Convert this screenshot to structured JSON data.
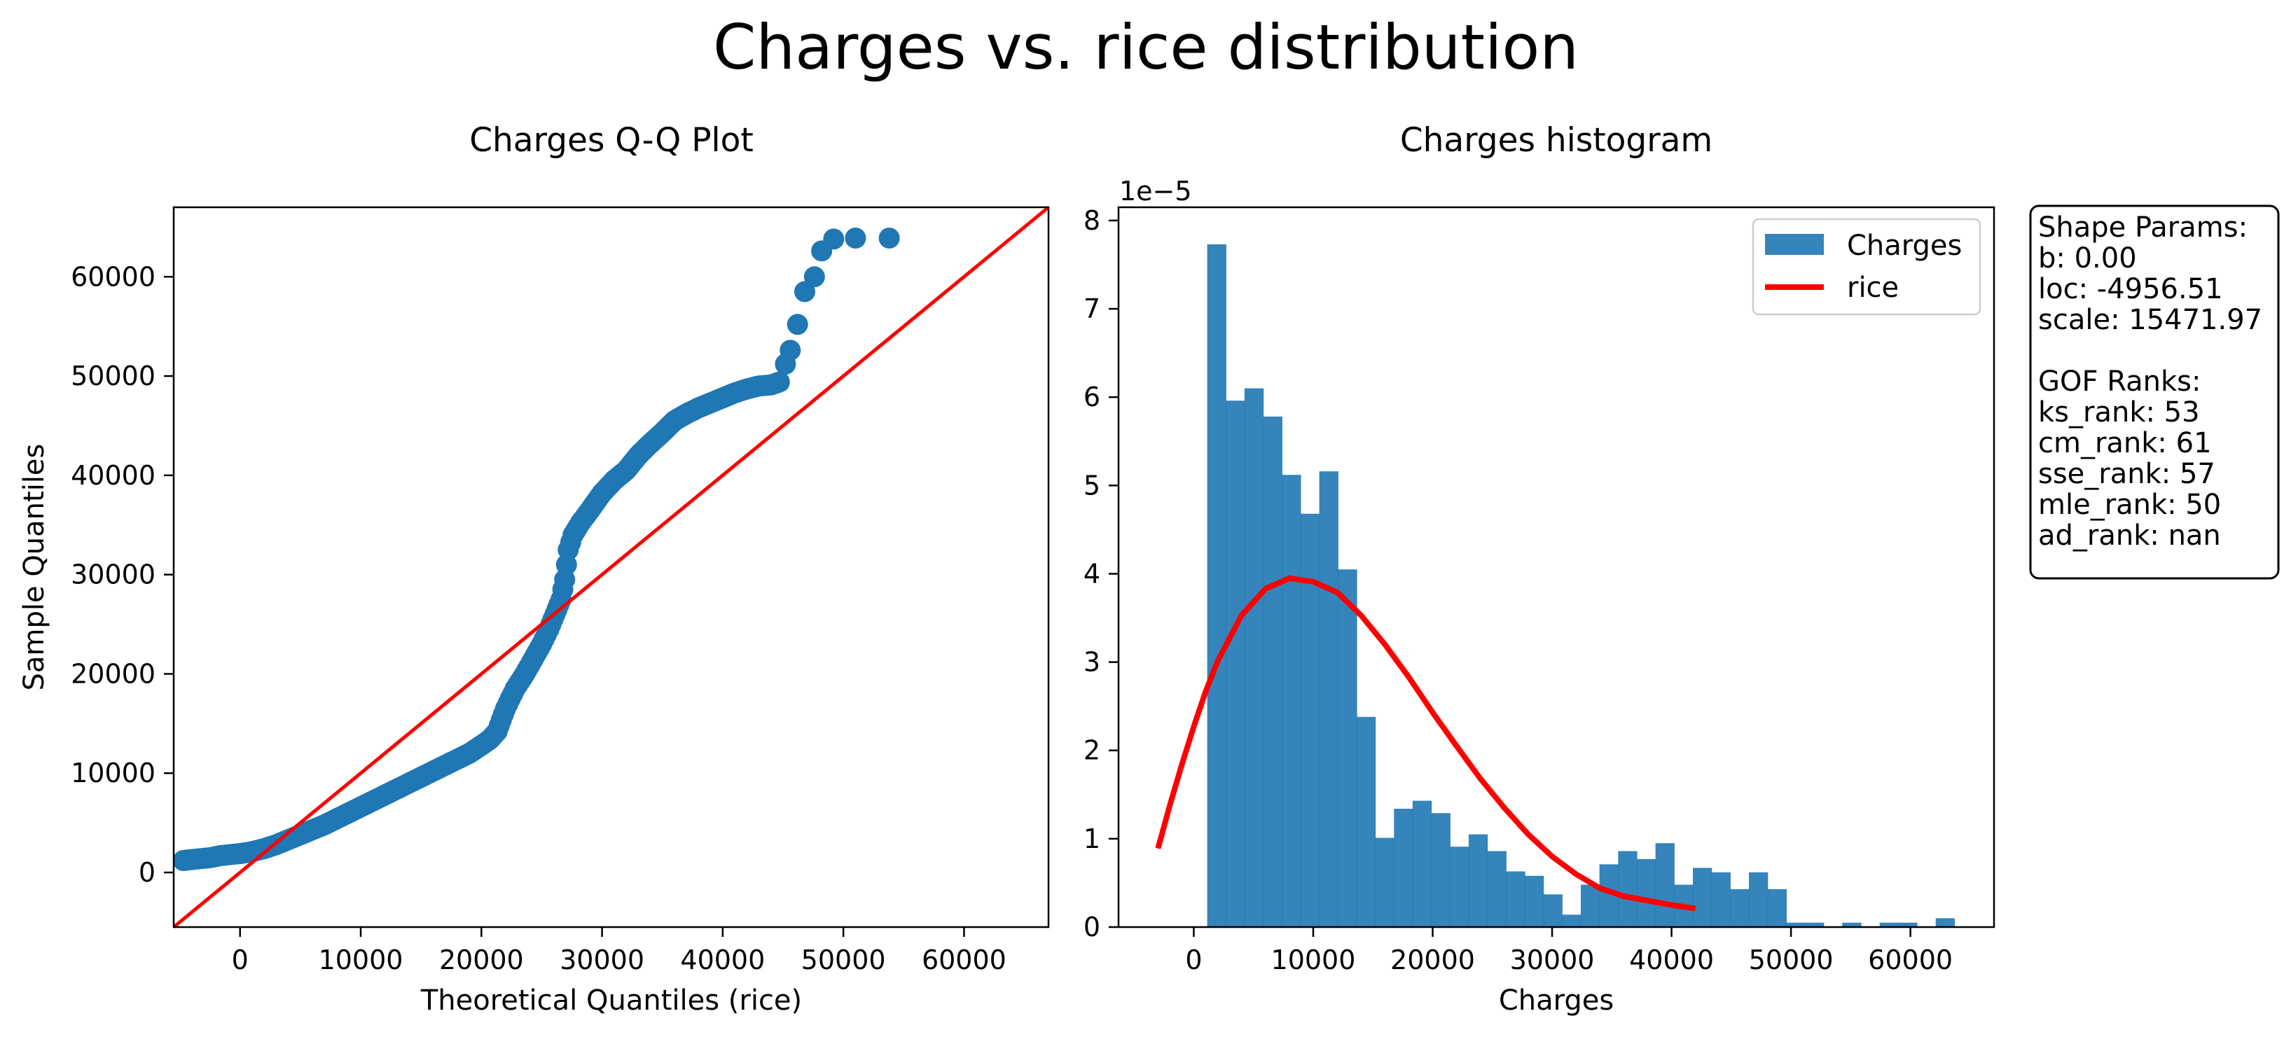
{
  "figure": {
    "suptitle": "Charges vs. rice distribution"
  },
  "chart_data": [
    {
      "type": "scatter",
      "title": "Charges Q-Q Plot",
      "xlabel": "Theoretical Quantiles (rice)",
      "ylabel": "Sample Quantiles",
      "xlim": [
        -5500,
        67000
      ],
      "ylim": [
        -5500,
        67000
      ],
      "xticks": [
        0,
        10000,
        20000,
        30000,
        40000,
        50000,
        60000
      ],
      "xtick_labels": [
        "0",
        "10000",
        "20000",
        "30000",
        "40000",
        "50000",
        "60000"
      ],
      "yticks": [
        0,
        10000,
        20000,
        30000,
        40000,
        50000,
        60000
      ],
      "ytick_labels": [
        "0",
        "10000",
        "20000",
        "30000",
        "40000",
        "50000",
        "60000"
      ],
      "marker_color": "#1f77b4",
      "reference_line": {
        "x": [
          -5500,
          67000
        ],
        "y": [
          -5500,
          67000
        ],
        "color": "#ff0000"
      },
      "series": [
        {
          "x": [
            -4700,
            -4000,
            -3200,
            -2400,
            -1600,
            -800,
            0,
            1000,
            2000,
            3000,
            4000,
            5000,
            6000,
            7000,
            8000,
            9000,
            10000,
            11000,
            12000,
            13000,
            14000,
            15000,
            16000,
            17000,
            18000,
            19000,
            20000,
            20700,
            21300,
            22000,
            22800,
            23600,
            24300,
            25000,
            25600,
            26100,
            26600,
            26900,
            27200,
            27600,
            28200,
            29000,
            30000,
            31000,
            32000,
            33000,
            34000,
            35000,
            36000,
            37000,
            38000,
            39000,
            40000,
            41000,
            42000,
            43000,
            44000,
            44700,
            45200,
            45600,
            46200,
            46800,
            47600,
            48200,
            49200,
            51000,
            53800
          ],
          "y": [
            1200,
            1300,
            1400,
            1500,
            1700,
            1800,
            1900,
            2100,
            2400,
            2800,
            3300,
            3800,
            4300,
            4800,
            5400,
            6000,
            6600,
            7200,
            7800,
            8400,
            9000,
            9600,
            10200,
            10800,
            11400,
            12000,
            12800,
            13400,
            14200,
            16500,
            18500,
            20000,
            21500,
            23000,
            24500,
            26000,
            27500,
            29500,
            32500,
            34000,
            35200,
            36500,
            38200,
            39500,
            40500,
            42000,
            43200,
            44300,
            45500,
            46200,
            46800,
            47300,
            47800,
            48300,
            48700,
            49000,
            49100,
            49400,
            51200,
            52600,
            55200,
            58500,
            60000,
            62600,
            63800,
            63900,
            63900
          ]
        }
      ]
    },
    {
      "type": "bar",
      "title": "Charges histogram",
      "xlabel": "Charges",
      "ylabel": "",
      "y_offset_label": "1e−5",
      "xlim": [
        -6300,
        67000
      ],
      "ylim": [
        0,
        8.15
      ],
      "xticks": [
        0,
        10000,
        20000,
        30000,
        40000,
        50000,
        60000
      ],
      "xtick_labels": [
        "0",
        "10000",
        "20000",
        "30000",
        "40000",
        "50000",
        "60000"
      ],
      "yticks": [
        0,
        1,
        2,
        3,
        4,
        5,
        6,
        7,
        8
      ],
      "ytick_labels": [
        "0",
        "1",
        "2",
        "3",
        "4",
        "5",
        "6",
        "7",
        "8"
      ],
      "bins": {
        "start": 1122,
        "width": 1563.9,
        "values": [
          7.73,
          5.96,
          6.1,
          5.78,
          5.12,
          4.68,
          5.16,
          4.05,
          2.38,
          1.01,
          1.34,
          1.43,
          1.29,
          0.91,
          1.05,
          0.86,
          0.63,
          0.58,
          0.37,
          0.14,
          0.48,
          0.71,
          0.86,
          0.77,
          0.95,
          0.48,
          0.67,
          0.62,
          0.43,
          0.62,
          0.43,
          0.05,
          0.05,
          0.0,
          0.05,
          0.0,
          0.05,
          0.05,
          0.0,
          0.1
        ]
      },
      "series": [
        {
          "name": "Charges",
          "kind": "hist",
          "color": "#1f77b4"
        },
        {
          "name": "rice",
          "kind": "line",
          "color": "#ff0000",
          "x": [
            -3000,
            -2000,
            -1000,
            0,
            1000,
            2000,
            4000,
            6000,
            8000,
            10000,
            12000,
            14000,
            16000,
            18000,
            20000,
            22000,
            24000,
            26000,
            28000,
            30000,
            32000,
            34000,
            36000,
            38000,
            40000,
            42000
          ],
          "y": [
            0.89,
            1.38,
            1.84,
            2.27,
            2.67,
            3.01,
            3.53,
            3.83,
            3.95,
            3.91,
            3.79,
            3.53,
            3.2,
            2.83,
            2.43,
            2.05,
            1.68,
            1.35,
            1.05,
            0.8,
            0.6,
            0.44,
            0.35,
            0.3,
            0.25,
            0.21
          ]
        }
      ],
      "legend_position": "upper right"
    }
  ],
  "info_box": {
    "lines": [
      "Shape Params:",
      "b: 0.00",
      "loc: -4956.51",
      "scale: 15471.97",
      "",
      "GOF Ranks:",
      "ks_rank: 53",
      "cm_rank: 61",
      "sse_rank: 57",
      "mle_rank: 50",
      "ad_rank: nan"
    ]
  }
}
